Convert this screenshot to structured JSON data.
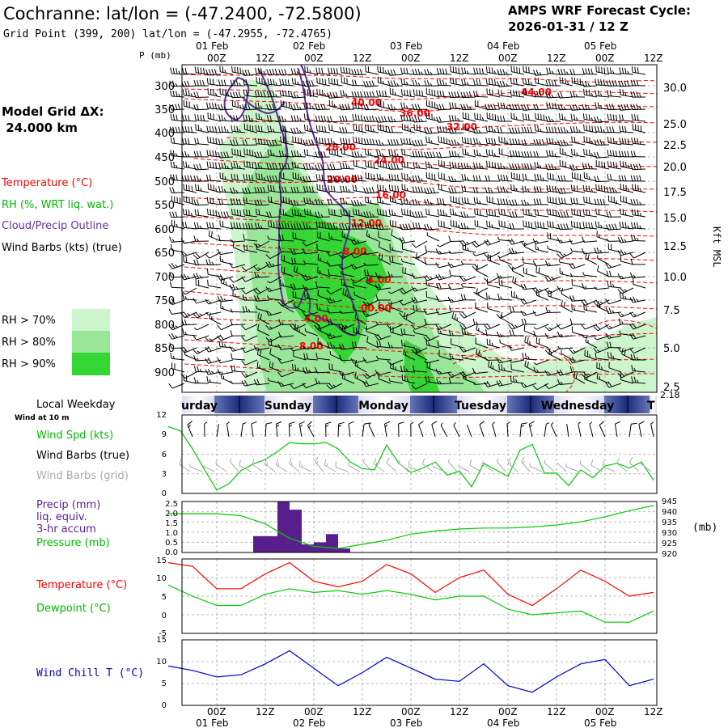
{
  "header": {
    "station_title": "Cochranne:  lat/lon = (-47.2400, -72.5800)",
    "grid_point": "Grid Point (399, 200) lat/lon = (-47.2955, -72.4765)",
    "forecast_title": "AMPS WRF Forecast Cycle:",
    "forecast_cycle": "2026-01-31 / 12  Z",
    "model_grid_label": "Model Grid ΔX:",
    "model_grid_value": " 24.000 km"
  },
  "time_axis": {
    "top_dates": [
      "01 Feb",
      "02 Feb",
      "03 Feb",
      "04 Feb",
      "05 Feb"
    ],
    "bottom_dates": [
      "01 Feb",
      "02 Feb",
      "03 Feb",
      "04 Feb",
      "05 Feb"
    ],
    "hour_labels": [
      "00Z",
      "12Z",
      "00Z",
      "12Z",
      "00Z",
      "12Z",
      "00Z",
      "12Z",
      "00Z",
      "12Z"
    ],
    "weekday_label": "Local Weekday",
    "weekdays": [
      "urday",
      "Sunday",
      "Monday",
      "Tuesday",
      "Wednesday",
      "T"
    ]
  },
  "profile_panel": {
    "pressure_axis_label": "P (mb)",
    "pressure_levels": [
      "300",
      "350",
      "400",
      "450",
      "500",
      "550",
      "600",
      "650",
      "700",
      "750",
      "800",
      "850",
      "900"
    ],
    "height_ticks": [
      "30.0",
      "25.0",
      "22.5",
      "20.0",
      "17.5",
      "15.0",
      "12.5",
      "10.0",
      "7.5",
      "5.0",
      "2.5"
    ],
    "height_bottom": "2.18",
    "height_unit": "Kft MSL",
    "legend": {
      "temperature": "Temperature (°C)",
      "rh": "RH (%, WRT liq. wat.)",
      "cloud": "Cloud/Precip Outline",
      "wind": "Wind Barbs (kts) (true)",
      "rh70": "RH > 70%",
      "rh80": "RH > 80%",
      "rh90": "RH > 90%"
    },
    "contour_labels": [
      "44.00",
      "40.00",
      "36.00",
      "32.00",
      "28.00",
      "24.00",
      "20.00",
      "16.00",
      "12.00",
      "8.00",
      "4.00",
      "00.00",
      "4.00",
      "8.00"
    ]
  },
  "wind_panel": {
    "subtitle": "Wind at 10 m",
    "legend_speed": "Wind Spd (kts)",
    "legend_true": "Wind Barbs (true)",
    "legend_grid": "Wind Barbs (grid)",
    "yticks": [
      "12",
      "9",
      "6",
      "3",
      "0"
    ]
  },
  "precip_panel": {
    "legend_precip": "Precip (mm)",
    "legend_liq": "liq. equiv.",
    "legend_accum": "3-hr accum",
    "legend_pressure": "Pressure (mb)",
    "yticks_left": [
      "2.5",
      "2.0",
      "1.5",
      "1.0",
      "0.5",
      "0.0"
    ],
    "yticks_right": [
      "945",
      "940",
      "935",
      "930",
      "925",
      "920"
    ],
    "unit_right": "(mb)"
  },
  "temp_panel": {
    "legend_temp": "Temperature (°C)",
    "legend_dew": "Dewpoint (°C)",
    "yticks": [
      "15",
      "10",
      "5",
      "0",
      "-5"
    ]
  },
  "chill_panel": {
    "legend": "Wind Chill T (°C)",
    "yticks": [
      "15",
      "10",
      "5",
      "0"
    ]
  },
  "colors": {
    "temperature": "#ff0000",
    "dewpoint": "#00cc00",
    "wind_speed": "#00cc00",
    "pressure": "#00cc00",
    "precip": "#5a1e8c",
    "cloud_outline": "#5a2e96",
    "wind_chill": "#0000cc",
    "rh70": "#ccf5cc",
    "rh80": "#99e699",
    "rh90": "#33d633",
    "grid": "#b8b8b8",
    "grid_wind": "#aaaaaa"
  },
  "chart_data": [
    {
      "type": "line",
      "title": "Wind at 10 m",
      "ylim": [
        0,
        12
      ],
      "x_hours": [
        -12,
        -9,
        -6,
        -3,
        0,
        3,
        6,
        9,
        12,
        15,
        18,
        21,
        24,
        27,
        30,
        33,
        36,
        39,
        42,
        45,
        48,
        51,
        54,
        57,
        60,
        63,
        66,
        69,
        72,
        75,
        78,
        81,
        84,
        87,
        90,
        93,
        96,
        99,
        102,
        105,
        108
      ],
      "series": [
        {
          "name": "Wind Spd (kts)",
          "values": [
            10.2,
            9.6,
            6.8,
            3.6,
            0.5,
            1.5,
            3.5,
            4.5,
            5.2,
            6.4,
            7.8,
            7.6,
            7.6,
            7.8,
            6.8,
            4.8,
            3.8,
            3.6,
            7.4,
            4.6,
            3.2,
            3.9,
            4.8,
            2.8,
            3.4,
            1.0,
            4.6,
            3.6,
            2.6,
            6.6,
            7.5,
            3.1,
            3.1,
            1.2,
            3.6,
            2.4,
            4.2,
            4.6,
            3.9,
            4.8,
            2.0
          ]
        }
      ]
    },
    {
      "type": "bar",
      "title": "Precip (mm) liq. equiv. 3-hr accum",
      "ylim": [
        0,
        2.5
      ],
      "x_hours": [
        12,
        15,
        18,
        21,
        24,
        27,
        30,
        33,
        36
      ],
      "values": [
        0.8,
        0.8,
        2.5,
        2.1,
        0.4,
        0.5,
        0.9,
        0.2,
        0.0
      ]
    },
    {
      "type": "line",
      "title": "Pressure (mb)",
      "ylim": [
        920,
        945
      ],
      "x_hours": [
        -12,
        -6,
        0,
        6,
        12,
        18,
        24,
        30,
        36,
        42,
        48,
        54,
        60,
        66,
        72,
        78,
        84,
        90,
        96,
        102,
        108
      ],
      "series": [
        {
          "name": "Pressure (mb)",
          "values": [
            939,
            939,
            939,
            938,
            934,
            927,
            923,
            922,
            924,
            926,
            929,
            930.5,
            931.5,
            932,
            932,
            932.5,
            933.5,
            935,
            937.5,
            940.5,
            943
          ]
        }
      ]
    },
    {
      "type": "line",
      "title": "Temperature / Dewpoint",
      "ylim": [
        -5,
        15
      ],
      "x_hours": [
        -12,
        -6,
        0,
        6,
        12,
        18,
        24,
        30,
        36,
        42,
        48,
        54,
        60,
        66,
        72,
        78,
        84,
        90,
        96,
        102,
        108
      ],
      "series": [
        {
          "name": "Temperature (°C)",
          "values": [
            14,
            13,
            7,
            7,
            11,
            14,
            9,
            7.5,
            9,
            13.5,
            11,
            6,
            10,
            12,
            5.5,
            2.5,
            7,
            12,
            9,
            5,
            6
          ]
        },
        {
          "name": "Dewpoint (°C)",
          "values": [
            8,
            5,
            2.5,
            2.5,
            5.5,
            7,
            6,
            6.5,
            5.5,
            6.5,
            5.5,
            4,
            5,
            5,
            1.5,
            0,
            0.5,
            1,
            -2,
            -2,
            1
          ]
        }
      ]
    },
    {
      "type": "line",
      "title": "Wind Chill T (°C)",
      "ylim": [
        0,
        15
      ],
      "x_hours": [
        -12,
        -6,
        0,
        6,
        12,
        18,
        24,
        30,
        36,
        42,
        48,
        54,
        60,
        66,
        72,
        78,
        84,
        90,
        96,
        102,
        108
      ],
      "series": [
        {
          "name": "Wind Chill T (°C)",
          "values": [
            9,
            8,
            6.5,
            7,
            9.5,
            12.5,
            8.5,
            4.5,
            7.5,
            11,
            8.5,
            6,
            5.5,
            9.5,
            4.5,
            3,
            6.5,
            9.5,
            10.5,
            4.5,
            6
          ]
        }
      ]
    }
  ]
}
